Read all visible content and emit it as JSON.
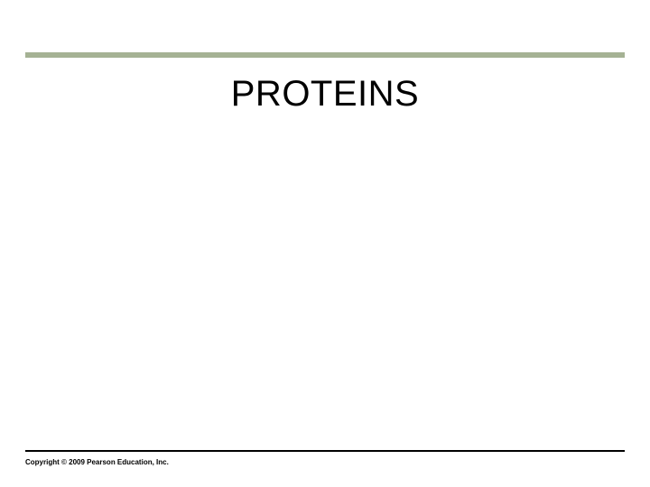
{
  "slide": {
    "title": "PROTEINS",
    "title_fontsize": 40,
    "title_color": "#000000"
  },
  "divider": {
    "top_rule_color": "#a5b294",
    "top_rule_height": 6,
    "bottom_rule_color": "#000000",
    "bottom_rule_height": 2
  },
  "footer": {
    "copyright": "Copyright © 2009 Pearson Education, Inc.",
    "copyright_fontsize": 8,
    "copyright_color": "#000000"
  },
  "background_color": "#ffffff"
}
